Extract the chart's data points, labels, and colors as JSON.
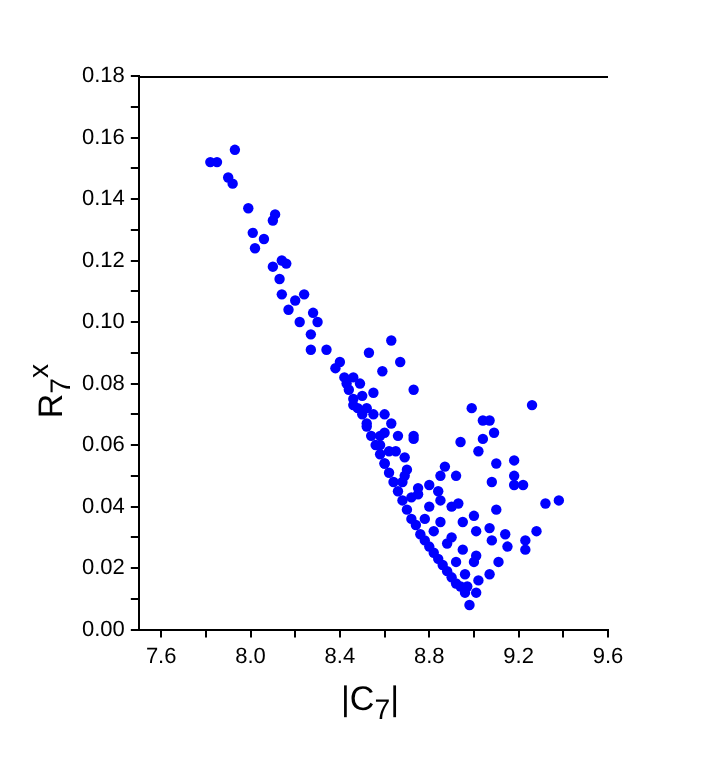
{
  "chart_data": {
    "type": "scatter",
    "xlabel": "|C$_{7}$|",
    "ylabel": "R$_{7}$$^{x}$",
    "marker": "circle",
    "grid": false,
    "legend": false,
    "xlim": [
      7.5,
      9.6
    ],
    "xticks": [
      {
        "value": 7.6,
        "label": "7.6"
      },
      {
        "value": 7.8,
        "label": null
      },
      {
        "value": 8.0,
        "label": "8.0"
      },
      {
        "value": 8.2,
        "label": null
      },
      {
        "value": 8.4,
        "label": "8.4"
      },
      {
        "value": 8.6,
        "label": null
      },
      {
        "value": 8.8,
        "label": "8.8"
      },
      {
        "value": 9.0,
        "label": null
      },
      {
        "value": 9.2,
        "label": "9.2"
      },
      {
        "value": 9.4,
        "label": null
      },
      {
        "value": 9.6,
        "label": "9.6"
      }
    ],
    "ylim": [
      0,
      0.18
    ],
    "yticks": [
      {
        "value": 0,
        "label": "0.00"
      },
      {
        "value": 0.01,
        "label": null
      },
      {
        "value": 0.02,
        "label": "0.02"
      },
      {
        "value": 0.03,
        "label": null
      },
      {
        "value": 0.04,
        "label": "0.04"
      },
      {
        "value": 0.05,
        "label": null
      },
      {
        "value": 0.06,
        "label": "0.06"
      },
      {
        "value": 0.07,
        "label": null
      },
      {
        "value": 0.08,
        "label": "0.08"
      },
      {
        "value": 0.09,
        "label": null
      },
      {
        "value": 0.1,
        "label": "0.10"
      },
      {
        "value": 0.11,
        "label": null
      },
      {
        "value": 0.12,
        "label": "0.12"
      },
      {
        "value": 0.13,
        "label": null
      },
      {
        "value": 0.14,
        "label": "0.14"
      },
      {
        "value": 0.15,
        "label": null
      },
      {
        "value": 0.16,
        "label": "0.16"
      },
      {
        "value": 0.17,
        "label": null
      },
      {
        "value": 0.18,
        "label": "0.18"
      }
    ],
    "series": [
      {
        "color": "#0000ff",
        "x": [
          7.82,
          7.85,
          7.93,
          7.9,
          7.92,
          7.99,
          8.01,
          8.02,
          8.06,
          8.1,
          8.11,
          8.1,
          8.14,
          8.13,
          8.16,
          8.14,
          8.17,
          8.2,
          8.24,
          8.22,
          8.28,
          8.3,
          8.27,
          8.27,
          8.34,
          8.4,
          8.43,
          8.49,
          8.53,
          8.63,
          8.67,
          8.59,
          8.55,
          8.46,
          8.73,
          8.6,
          8.52,
          8.63,
          8.66,
          8.73,
          8.73,
          8.69,
          8.58,
          8.6,
          8.99,
          9.04,
          9.07,
          9.09,
          9.04,
          8.94,
          9.02,
          9.26,
          9.1,
          9.18,
          9.18,
          9.22,
          9.18,
          9.08,
          8.87,
          8.92,
          9.32,
          9.38,
          9.28,
          9.23,
          9.23,
          9.15,
          9.11,
          9.14,
          9.08,
          9.1,
          9.07,
          9.07,
          9.01,
          8.98,
          8.97,
          9.01,
          9.01,
          9.0,
          8.93,
          8.84,
          8.75,
          8.8,
          8.69,
          8.85,
          8.38,
          8.42,
          8.44,
          8.46,
          8.48,
          8.5,
          8.52,
          8.54,
          8.56,
          8.58,
          8.6,
          8.62,
          8.64,
          8.66,
          8.68,
          8.7,
          8.72,
          8.74,
          8.76,
          8.78,
          8.8,
          8.82,
          8.84,
          8.86,
          8.88,
          8.9,
          8.92,
          8.94,
          8.96,
          8.46,
          8.5,
          8.55,
          8.6,
          8.65,
          8.7,
          8.75,
          8.8,
          8.85,
          8.9,
          8.95,
          9.0,
          8.58,
          8.68,
          8.78,
          8.88,
          8.92,
          8.96,
          9.02,
          8.82,
          8.72,
          8.62,
          8.52,
          8.9,
          8.95,
          8.85
        ],
        "values": [
          0.152,
          0.152,
          0.156,
          0.147,
          0.145,
          0.137,
          0.129,
          0.124,
          0.127,
          0.133,
          0.135,
          0.118,
          0.12,
          0.114,
          0.119,
          0.109,
          0.104,
          0.107,
          0.109,
          0.1,
          0.103,
          0.1,
          0.096,
          0.091,
          0.091,
          0.087,
          0.08,
          0.08,
          0.09,
          0.094,
          0.087,
          0.084,
          0.077,
          0.073,
          0.078,
          0.07,
          0.067,
          0.067,
          0.063,
          0.063,
          0.062,
          0.056,
          0.06,
          0.054,
          0.072,
          0.068,
          0.068,
          0.064,
          0.062,
          0.061,
          0.058,
          0.073,
          0.054,
          0.055,
          0.05,
          0.047,
          0.047,
          0.048,
          0.053,
          0.05,
          0.041,
          0.042,
          0.032,
          0.029,
          0.026,
          0.027,
          0.022,
          0.031,
          0.029,
          0.039,
          0.033,
          0.018,
          0.012,
          0.008,
          0.014,
          0.024,
          0.032,
          0.037,
          0.041,
          0.045,
          0.044,
          0.047,
          0.05,
          0.05,
          0.085,
          0.082,
          0.078,
          0.075,
          0.072,
          0.07,
          0.066,
          0.063,
          0.06,
          0.057,
          0.054,
          0.051,
          0.048,
          0.045,
          0.042,
          0.039,
          0.036,
          0.034,
          0.031,
          0.029,
          0.027,
          0.025,
          0.023,
          0.021,
          0.019,
          0.017,
          0.015,
          0.014,
          0.012,
          0.082,
          0.076,
          0.07,
          0.064,
          0.058,
          0.052,
          0.046,
          0.04,
          0.035,
          0.03,
          0.026,
          0.022,
          0.063,
          0.048,
          0.036,
          0.028,
          0.022,
          0.018,
          0.016,
          0.032,
          0.043,
          0.058,
          0.072,
          0.04,
          0.035,
          0.042
        ]
      }
    ]
  }
}
